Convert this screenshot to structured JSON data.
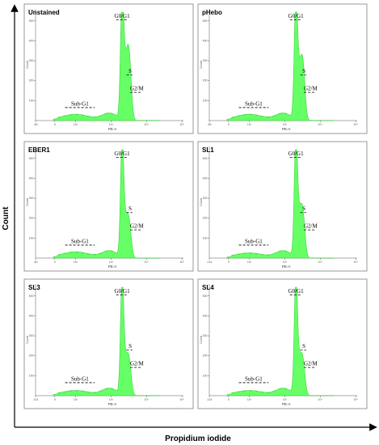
{
  "figure": {
    "xlabel": "Propidium iodide",
    "ylabel": "Count"
  },
  "chart_data": [
    {
      "type": "area",
      "title": "Unstained",
      "xlabel": "PE-A",
      "ylabel": "Count",
      "x_tick_labels": [
        "-80",
        "0",
        "10²",
        "10³",
        "10⁴",
        "10⁵"
      ],
      "y_tick_labels": [
        "100",
        "200",
        "300",
        "400",
        "500"
      ],
      "gates": [
        "Sub-G1",
        "G0/G1",
        "S",
        "G2/M"
      ],
      "peaks": {
        "subg1_level": 0.05,
        "g0g1_peak": 1.0,
        "s_level": 0.52,
        "g2m_level": 0.4
      },
      "grid": false
    },
    {
      "type": "area",
      "title": "pHebo",
      "xlabel": "PE-A",
      "ylabel": "Count",
      "x_tick_labels": [
        "-80",
        "0",
        "10²",
        "10³",
        "10⁴",
        "10⁵"
      ],
      "y_tick_labels": [
        "100",
        "200",
        "300",
        "400",
        "500"
      ],
      "gates": [
        "Sub-G1",
        "G0/G1",
        "S",
        "G2/M"
      ],
      "peaks": {
        "subg1_level": 0.05,
        "g0g1_peak": 1.0,
        "s_level": 0.46,
        "g2m_level": 0.34
      },
      "grid": false
    },
    {
      "type": "area",
      "title": "EBER1",
      "xlabel": "PE-A",
      "ylabel": "Count",
      "x_tick_labels": [
        "-80",
        "0",
        "10²",
        "10³",
        "10⁴",
        "10⁵"
      ],
      "y_tick_labels": [
        "100",
        "200",
        "300",
        "400",
        "500"
      ],
      "gates": [
        "Sub-G1",
        "G0/G1",
        "S",
        "G2/M"
      ],
      "peaks": {
        "subg1_level": 0.05,
        "g0g1_peak": 1.0,
        "s_level": 0.34,
        "g2m_level": 0.2
      },
      "grid": false
    },
    {
      "type": "area",
      "title": "SL1",
      "xlabel": "PE-A",
      "ylabel": "Count",
      "x_tick_labels": [
        "-114",
        "0",
        "10²",
        "10³",
        "10⁴",
        "10⁵"
      ],
      "y_tick_labels": [
        "100",
        "200",
        "300",
        "400",
        "500"
      ],
      "gates": [
        "Sub-G1",
        "G0/G1",
        "S",
        "G2/M"
      ],
      "peaks": {
        "subg1_level": 0.04,
        "g0g1_peak": 1.0,
        "s_level": 0.4,
        "g2m_level": 0.26
      },
      "grid": false
    },
    {
      "type": "area",
      "title": "SL3",
      "xlabel": "PE-A",
      "ylabel": "Count",
      "x_tick_labels": [
        "-114",
        "0",
        "10²",
        "10³",
        "10⁴",
        "10⁵"
      ],
      "y_tick_labels": [
        "100",
        "200",
        "300",
        "400",
        "500"
      ],
      "gates": [
        "Sub-G1",
        "G0/G1",
        "S",
        "G2/M"
      ],
      "peaks": {
        "subg1_level": 0.04,
        "g0g1_peak": 1.0,
        "s_level": 0.32,
        "g2m_level": 0.2
      },
      "grid": false
    },
    {
      "type": "area",
      "title": "SL4",
      "xlabel": "PE-A",
      "ylabel": "Count",
      "x_tick_labels": [
        "-114",
        "0",
        "10²",
        "10³",
        "10⁴",
        "10⁵"
      ],
      "y_tick_labels": [
        "100",
        "200",
        "300",
        "400",
        "500"
      ],
      "gates": [
        "Sub-G1",
        "G0/G1",
        "S",
        "G2/M"
      ],
      "peaks": {
        "subg1_level": 0.04,
        "g0g1_peak": 1.0,
        "s_level": 0.32,
        "g2m_level": 0.2
      },
      "grid": false
    }
  ],
  "colors": {
    "histogram_fill": "#66ff66",
    "histogram_edge": "#2ecc2e",
    "frame": "#7f7f7f"
  }
}
